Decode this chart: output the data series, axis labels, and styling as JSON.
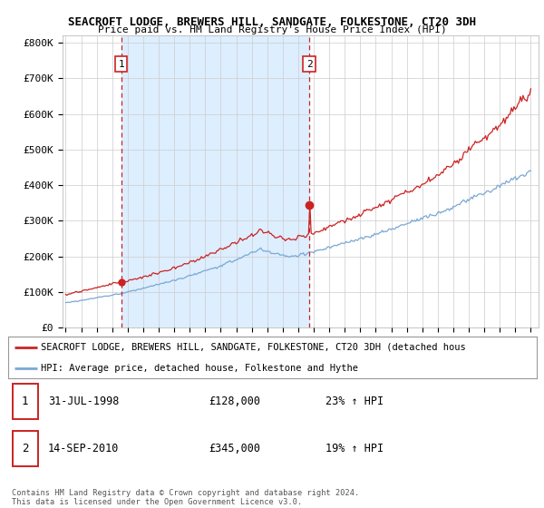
{
  "title": "SEACROFT LODGE, BREWERS HILL, SANDGATE, FOLKESTONE, CT20 3DH",
  "subtitle": "Price paid vs. HM Land Registry's House Price Index (HPI)",
  "ylabel_ticks": [
    "£0",
    "£100K",
    "£200K",
    "£300K",
    "£400K",
    "£500K",
    "£600K",
    "£700K",
    "£800K"
  ],
  "ytick_values": [
    0,
    100000,
    200000,
    300000,
    400000,
    500000,
    600000,
    700000,
    800000
  ],
  "ylim": [
    0,
    820000
  ],
  "xlim_start": 1994.8,
  "xlim_end": 2025.5,
  "hpi_color": "#7aa8d4",
  "price_color": "#cc2222",
  "highlight_color": "#ddeeff",
  "transaction1_x": 1998.58,
  "transaction1_price": 128000,
  "transaction2_x": 2010.71,
  "transaction2_price": 345000,
  "legend_line1": "SEACROFT LODGE, BREWERS HILL, SANDGATE, FOLKESTONE, CT20 3DH (detached hous",
  "legend_line2": "HPI: Average price, detached house, Folkestone and Hythe",
  "footer": "Contains HM Land Registry data © Crown copyright and database right 2024.\nThis data is licensed under the Open Government Licence v3.0.",
  "table_row1": [
    "1",
    "31-JUL-1998",
    "£128,000",
    "23% ↑ HPI"
  ],
  "table_row2": [
    "2",
    "14-SEP-2010",
    "£345,000",
    "19% ↑ HPI"
  ],
  "background_color": "#ffffff",
  "grid_color": "#cccccc"
}
